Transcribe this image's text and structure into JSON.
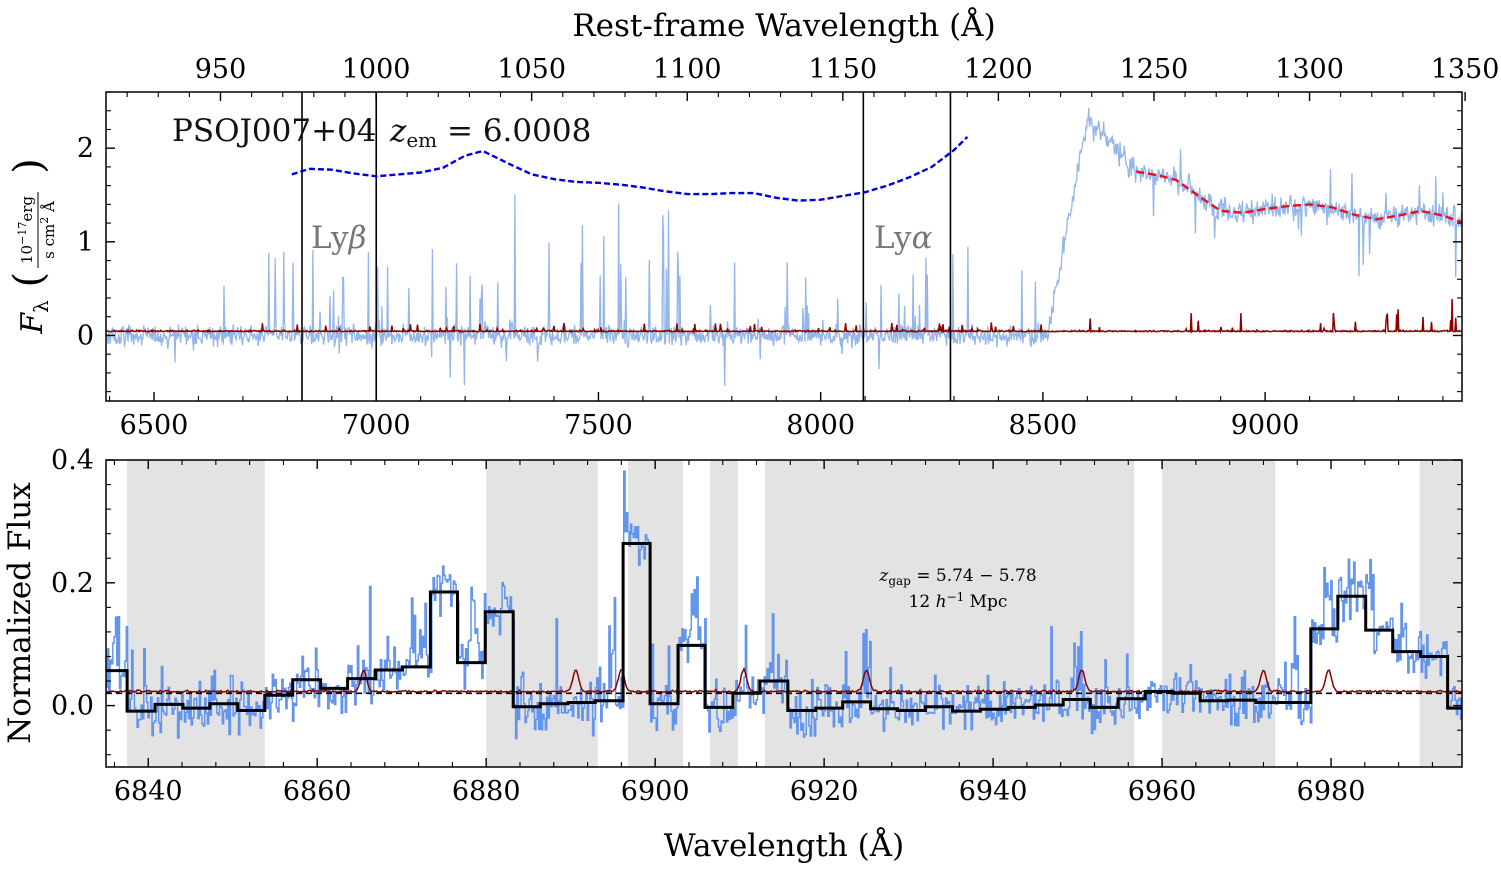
{
  "chart_data": [
    {
      "type": "line",
      "panel": "top",
      "top_axis_label": "Rest-frame Wavelength (Å)",
      "top_axis_ticks": [
        950,
        1000,
        1050,
        1100,
        1150,
        1200,
        1250,
        1300,
        1350
      ],
      "bottom_axis_ticks": [
        6500,
        7000,
        7500,
        8000,
        8500,
        9000
      ],
      "y_axis_label": "F_λ (10^−17 erg / s cm² Å)",
      "y_axis_ticks": [
        0,
        1,
        2
      ],
      "xlim": [
        6392,
        9443
      ],
      "ylim": [
        -0.7,
        2.6
      ],
      "rest_xlim": [
        913.2,
        1349.0
      ],
      "object_name": "PSOJ007+04",
      "redshift_text": "z_em = 6.0008",
      "lines": [
        {
          "label": "Lyβ",
          "x_pairs": [
            6833,
            7000
          ]
        },
        {
          "label": "Lyα",
          "x_pairs": [
            8096,
            8292
          ]
        }
      ],
      "flux_series_color": "#94b6ea",
      "error_series_color": "#8b0000",
      "continuum_blue": {
        "color": "#0000dd",
        "x": [
          6810,
          6850,
          6900,
          6950,
          7000,
          7050,
          7100,
          7150,
          7200,
          7240,
          7300,
          7350,
          7400,
          7450,
          7500,
          7550,
          7600,
          7650,
          7700,
          7750,
          7800,
          7850,
          7900,
          7950,
          8000,
          8050,
          8100,
          8150,
          8200,
          8250,
          8300,
          8330
        ],
        "y": [
          1.72,
          1.78,
          1.77,
          1.73,
          1.7,
          1.72,
          1.74,
          1.79,
          1.92,
          1.97,
          1.83,
          1.72,
          1.67,
          1.64,
          1.63,
          1.61,
          1.58,
          1.54,
          1.51,
          1.51,
          1.52,
          1.52,
          1.47,
          1.44,
          1.45,
          1.49,
          1.53,
          1.6,
          1.69,
          1.8,
          1.98,
          2.12
        ]
      },
      "continuum_red": {
        "color": "#e8111a",
        "x": [
          8710,
          8760,
          8800,
          8850,
          8900,
          8950,
          9000,
          9050,
          9100,
          9150,
          9200,
          9250,
          9300,
          9350,
          9400,
          9443
        ],
        "y": [
          1.75,
          1.71,
          1.66,
          1.49,
          1.33,
          1.31,
          1.35,
          1.38,
          1.4,
          1.37,
          1.29,
          1.24,
          1.28,
          1.33,
          1.28,
          1.21
        ]
      }
    },
    {
      "type": "line",
      "panel": "bottom",
      "x_axis_label": "Wavelength (Å)",
      "y_axis_label": "Normalized Flux",
      "x_ticks": [
        6840,
        6860,
        6880,
        6900,
        6920,
        6940,
        6960,
        6980
      ],
      "y_ticks": [
        "0.0",
        "0.2",
        "0.4"
      ],
      "y_tick_values": [
        0.0,
        0.2,
        0.4
      ],
      "xlim": [
        6835,
        6995.5
      ],
      "ylim": [
        -0.1,
        0.4
      ],
      "annotation_line1": "z_gap = 5.74 − 5.78",
      "annotation_line2": "12 h^−1 Mpc",
      "dashed_reference_y": 0.02,
      "shaded_regions": [
        [
          6837.5,
          6853.8
        ],
        [
          6880.0,
          6893.2
        ],
        [
          6896.8,
          6903.3
        ],
        [
          6906.5,
          6909.8
        ],
        [
          6913.0,
          6956.7
        ],
        [
          6960.0,
          6973.4
        ],
        [
          6990.5,
          6995.5
        ]
      ],
      "binned_flux": {
        "color": "#000000",
        "edges": [
          6835,
          6837.5,
          6840.8,
          6844.1,
          6847.3,
          6850.6,
          6853.8,
          6857.1,
          6860.4,
          6863.6,
          6866.9,
          6870.1,
          6873.4,
          6876.6,
          6879.9,
          6883.2,
          6886.4,
          6889.7,
          6892.9,
          6896.2,
          6899.4,
          6902.7,
          6905.9,
          6909.2,
          6912.4,
          6915.7,
          6919.0,
          6922.2,
          6925.5,
          6928.7,
          6932.0,
          6935.2,
          6938.5,
          6941.8,
          6945.0,
          6948.3,
          6951.5,
          6954.8,
          6958.0,
          6961.3,
          6964.5,
          6967.8,
          6971.1,
          6974.3,
          6977.6,
          6980.8,
          6984.1,
          6987.3,
          6990.6,
          6993.8,
          6995.5
        ],
        "values": [
          0.057,
          -0.009,
          0.002,
          -0.004,
          0.003,
          -0.008,
          0.017,
          0.042,
          0.028,
          0.044,
          0.058,
          0.063,
          0.185,
          0.07,
          0.153,
          -0.002,
          0.003,
          0.005,
          0.008,
          0.264,
          0.003,
          0.098,
          -0.003,
          0.02,
          0.04,
          -0.008,
          -0.004,
          0.006,
          -0.005,
          -0.008,
          -0.002,
          -0.009,
          -0.006,
          -0.003,
          0.001,
          0.01,
          -0.003,
          0.011,
          0.023,
          0.02,
          0.008,
          0.009,
          0.005,
          0.005,
          0.125,
          0.178,
          0.123,
          0.088,
          0.08,
          -0.004,
          0.0
        ]
      },
      "flux_series_color": "#6495ed",
      "error_series_color": "#8b0000"
    }
  ]
}
